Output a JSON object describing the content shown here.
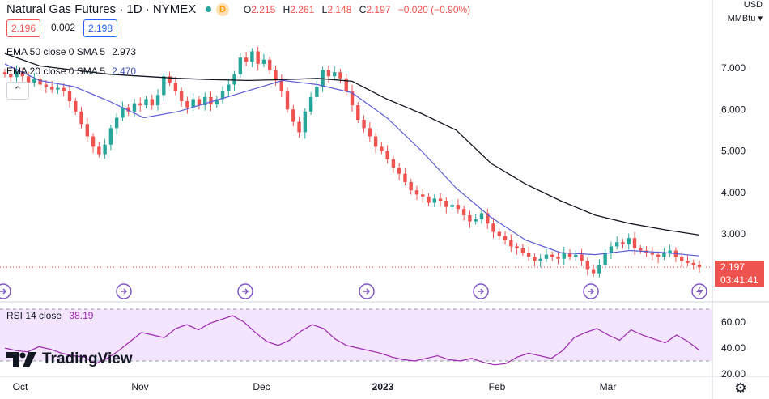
{
  "header": {
    "symbol": "Natural Gas Futures · 1D · NYMEX",
    "badge": "D",
    "ohlc": {
      "o_label": "O",
      "o": "2.215",
      "h_label": "H",
      "h": "2.261",
      "l_label": "L",
      "l": "2.148",
      "c_label": "C",
      "c": "2.197",
      "change": "−0.020 (−0.90%)"
    }
  },
  "top_right": {
    "currency": "USD",
    "unit": "MMBtu"
  },
  "sell_box": "2.196",
  "spread": "0.002",
  "buy_box": "2.198",
  "indicators": [
    {
      "label": "EMA 50 close 0 SMA 5",
      "value": "2.973",
      "color": "#131722"
    },
    {
      "label": "EMA 20 close 0 SMA 5",
      "value": "2.470",
      "color": "#3f51b5"
    }
  ],
  "collapse_glyph": "⌃",
  "rsi": {
    "label": "RSI 14 close",
    "value": "38.19"
  },
  "price_tag": {
    "price": "2.197",
    "countdown": "03:41:41"
  },
  "logo_text": "TradingView",
  "colors": {
    "up": "#26a69a",
    "down": "#ef5350",
    "ema50": "#131722",
    "ema20": "#5b5bd6",
    "rsi_line": "#9c27b0",
    "rsi_band": "#f3e5fd",
    "grid_dotted": "#ef5350"
  },
  "icons": [
    "dividend-marker-icon",
    "flash-icon",
    "settings-gear-icon"
  ],
  "chart_data": [
    {
      "type": "candlestick",
      "title": "Natural Gas Futures · 1D · NYMEX",
      "y_ticks": [
        "3.000",
        "4.000",
        "5.000",
        "6.000",
        "7.000"
      ],
      "ylim": [
        2.0,
        7.7
      ],
      "x_ticks": [
        "Oct",
        "Nov",
        "Dec",
        "2023",
        "Feb",
        "Mar"
      ],
      "closes": [
        6.85,
        6.78,
        6.92,
        6.8,
        6.65,
        6.74,
        6.6,
        6.55,
        6.48,
        6.52,
        6.45,
        6.2,
        5.95,
        5.65,
        5.35,
        5.1,
        4.92,
        5.15,
        5.55,
        5.8,
        6.05,
        5.95,
        6.15,
        6.1,
        6.25,
        6.1,
        6.35,
        6.8,
        6.65,
        6.45,
        6.2,
        6.05,
        6.25,
        6.1,
        6.3,
        6.12,
        6.25,
        6.45,
        6.6,
        6.85,
        7.25,
        7.15,
        7.4,
        7.1,
        7.2,
        6.95,
        6.7,
        6.45,
        6.0,
        5.7,
        5.45,
        5.95,
        6.3,
        6.55,
        6.95,
        6.8,
        6.9,
        6.75,
        6.45,
        6.1,
        5.75,
        5.55,
        5.35,
        5.1,
        5.0,
        4.8,
        4.6,
        4.45,
        4.25,
        4.05,
        3.95,
        3.9,
        3.75,
        3.85,
        3.8,
        3.65,
        3.7,
        3.6,
        3.45,
        3.3,
        3.35,
        3.5,
        3.25,
        3.05,
        2.95,
        2.85,
        2.7,
        2.65,
        2.55,
        2.45,
        2.35,
        2.4,
        2.5,
        2.45,
        2.4,
        2.55,
        2.45,
        2.5,
        2.35,
        2.15,
        2.05,
        2.25,
        2.55,
        2.7,
        2.8,
        2.75,
        2.9,
        2.65,
        2.6,
        2.55,
        2.5,
        2.45,
        2.55,
        2.6,
        2.45,
        2.35,
        2.3,
        2.25,
        2.197
      ],
      "series": [
        {
          "name": "EMA 50 close 0 SMA 5",
          "values": [
            7.35,
            7.05,
            6.95,
            6.85,
            6.8,
            6.75,
            6.72,
            6.7,
            6.72,
            6.75,
            6.68,
            6.25,
            5.9,
            5.5,
            4.7,
            4.2,
            3.8,
            3.45,
            3.25,
            3.1,
            2.973
          ]
        },
        {
          "name": "EMA 20 close 0 SMA 5",
          "values": [
            7.1,
            6.7,
            6.55,
            6.2,
            5.8,
            5.95,
            6.2,
            6.45,
            6.7,
            6.6,
            6.4,
            5.8,
            5.0,
            4.1,
            3.4,
            2.85,
            2.55,
            2.5,
            2.6,
            2.55,
            2.47
          ]
        }
      ]
    },
    {
      "type": "line",
      "title": "RSI 14 close",
      "y_ticks": [
        "20.00",
        "40.00",
        "60.00"
      ],
      "ylim": [
        17,
        72
      ],
      "band": [
        30,
        70
      ],
      "series": [
        {
          "name": "RSI 14 close",
          "values": [
            40,
            38,
            37,
            41,
            39,
            36,
            34,
            33,
            28,
            32,
            38,
            45,
            52,
            50,
            48,
            55,
            58,
            54,
            59,
            62,
            65,
            60,
            52,
            45,
            42,
            46,
            53,
            58,
            55,
            47,
            42,
            40,
            38,
            36,
            33,
            31,
            30,
            32,
            34,
            31,
            30,
            32,
            29,
            27,
            28,
            33,
            36,
            34,
            32,
            38,
            48,
            52,
            55,
            50,
            46,
            54,
            50,
            47,
            44,
            50,
            45,
            38.19
          ]
        }
      ]
    }
  ]
}
